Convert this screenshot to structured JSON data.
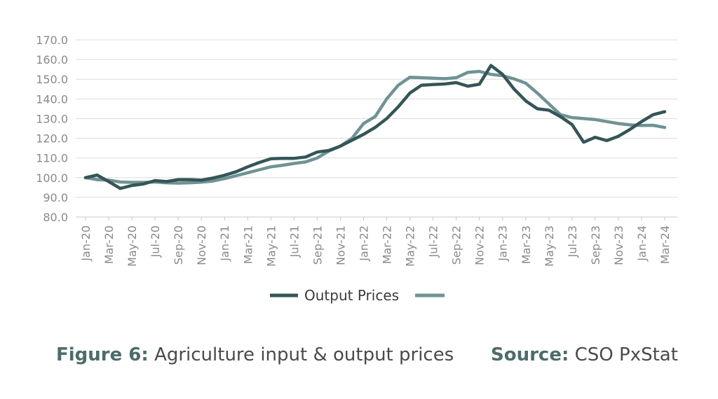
{
  "chart_data": {
    "type": "line",
    "x": [
      "Jan-20",
      "Feb-20",
      "Mar-20",
      "Apr-20",
      "May-20",
      "Jun-20",
      "Jul-20",
      "Aug-20",
      "Sep-20",
      "Oct-20",
      "Nov-20",
      "Dec-20",
      "Jan-21",
      "Feb-21",
      "Mar-21",
      "Apr-21",
      "May-21",
      "Jun-21",
      "Jul-21",
      "Aug-21",
      "Sep-21",
      "Oct-21",
      "Nov-21",
      "Dec-21",
      "Jan-22",
      "Feb-22",
      "Mar-22",
      "Apr-22",
      "May-22",
      "Jun-22",
      "Jul-22",
      "Aug-22",
      "Sep-22",
      "Oct-22",
      "Nov-22",
      "Dec-22",
      "Jan-23",
      "Feb-23",
      "Mar-23",
      "Apr-23",
      "May-23",
      "Jun-23",
      "Jul-23",
      "Aug-23",
      "Sep-23",
      "Oct-23",
      "Nov-23",
      "Dec-23",
      "Jan-24",
      "Feb-24",
      "Mar-24"
    ],
    "x_tick_labels": [
      "Jan-20",
      "Mar-20",
      "May-20",
      "Jul-20",
      "Sep-20",
      "Nov-20",
      "Jan-21",
      "Mar-21",
      "May-21",
      "Jul-21",
      "Sep-21",
      "Nov-21",
      "Jan-22",
      "Mar-22",
      "May-22",
      "Jul-22",
      "Sep-22",
      "Nov-22",
      "Jan-23",
      "Mar-23",
      "May-23",
      "Jul-23",
      "Sep-23",
      "Nov-23",
      "Jan-24",
      "Mar-24"
    ],
    "y_tick_labels": [
      "80.0",
      "90.0",
      "100.0",
      "110.0",
      "120.0",
      "130.0",
      "140.0",
      "150.0",
      "160.0",
      "170.0"
    ],
    "ylim": [
      80,
      170
    ],
    "grid": true,
    "legend_position": "bottom",
    "series": [
      {
        "name": "Output Prices",
        "color": "#355556",
        "values": [
          100.0,
          101.3,
          98.0,
          94.5,
          96.0,
          96.8,
          98.5,
          98.0,
          99.0,
          99.0,
          98.7,
          99.8,
          101.2,
          103.0,
          105.5,
          107.7,
          109.6,
          109.8,
          109.8,
          110.5,
          113.0,
          113.8,
          116.0,
          119.0,
          122.0,
          125.5,
          130.0,
          136.0,
          143.0,
          147.0,
          147.3,
          147.6,
          148.3,
          146.5,
          147.5,
          157.0,
          152.5,
          145.0,
          139.0,
          135.0,
          134.3,
          131.0,
          127.0,
          118.0,
          120.5,
          118.8,
          121.0,
          124.5,
          128.5,
          132.0,
          133.5
        ]
      },
      {
        "name": "",
        "color": "#6f9394",
        "values": [
          100.0,
          99.0,
          98.7,
          97.8,
          97.6,
          97.6,
          97.8,
          97.4,
          97.2,
          97.4,
          97.7,
          98.3,
          99.5,
          101.0,
          102.5,
          104.0,
          105.5,
          106.3,
          107.2,
          108.0,
          110.0,
          113.5,
          116.0,
          120.0,
          127.5,
          131.0,
          140.0,
          147.0,
          151.0,
          150.8,
          150.5,
          150.3,
          150.8,
          153.5,
          154.0,
          152.5,
          151.8,
          150.2,
          148.0,
          143.0,
          137.5,
          132.0,
          130.5,
          130.0,
          129.5,
          128.5,
          127.5,
          126.8,
          126.5,
          126.6,
          125.5
        ]
      }
    ]
  },
  "caption": {
    "figure_label": "Figure 6:",
    "figure_text": "Agriculture input & output prices",
    "source_label": "Source:",
    "source_text": "CSO PxStat"
  }
}
